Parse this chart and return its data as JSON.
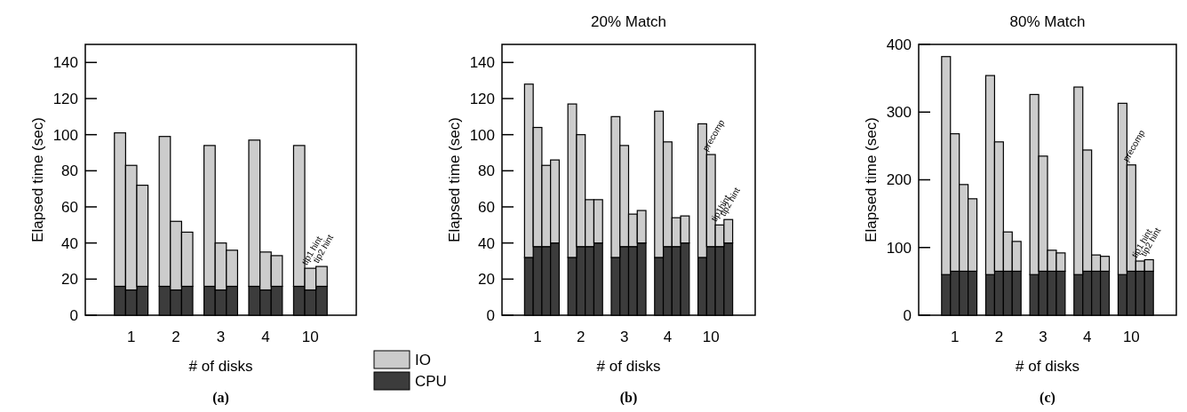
{
  "chart_data": [
    {
      "type": "bar",
      "stacked": true,
      "ylabel": "Elapsed time (sec)",
      "xlabel": "# of disks",
      "legend": "bottom right",
      "categories": [
        null,
        "1",
        null,
        null,
        null,
        "2",
        null,
        null,
        null,
        "3",
        null,
        null,
        null,
        "4",
        null,
        null,
        null,
        "10",
        null
      ],
      "ylim": [
        0,
        150
      ],
      "yticks": [
        0,
        20,
        40,
        60,
        80,
        100,
        120,
        140
      ],
      "series": [
        {
          "name": "CPU",
          "color": "#3c3c3c",
          "values": [
            16,
            14,
            16,
            null,
            16,
            14,
            16,
            null,
            16,
            14,
            16,
            null,
            16,
            14,
            16,
            null,
            16,
            14,
            16
          ]
        },
        {
          "name": "IO",
          "color": "#cccccc",
          "values": [
            85,
            69,
            56,
            null,
            83,
            38,
            30,
            null,
            78,
            26,
            20,
            null,
            81,
            21,
            17,
            null,
            78,
            12,
            11
          ]
        }
      ],
      "annotations": [
        {
          "text": "tip1 hint",
          "y": 26
        },
        {
          "text": "tip2 hint",
          "y": 27
        },
        "(a)"
      ]
    },
    {
      "type": "bar",
      "stacked": true,
      "title": "20% Match",
      "ylabel": "Elapsed time (sec)",
      "xlabel": "# of disks",
      "categories": [
        null,
        "1",
        null,
        null,
        null,
        null,
        "2",
        null,
        null,
        null,
        null,
        "3",
        null,
        null,
        null,
        null,
        "4",
        null,
        null,
        null,
        null,
        "10",
        null,
        null
      ],
      "ylim": [
        0,
        150
      ],
      "yticks": [
        0,
        20,
        40,
        60,
        80,
        100,
        120,
        140
      ],
      "series": [
        {
          "color": "#3c3c3c",
          "values": [
            32,
            38,
            38,
            40,
            null,
            32,
            38,
            38,
            40,
            null,
            32,
            38,
            38,
            40,
            null,
            32,
            38,
            38,
            40,
            null,
            32,
            38,
            38,
            40
          ]
        },
        {
          "color": "#cccccc",
          "values": [
            96,
            66,
            45,
            46,
            null,
            85,
            62,
            26,
            24,
            null,
            78,
            56,
            18,
            18,
            null,
            81,
            58,
            16,
            15,
            null,
            74,
            51,
            12,
            13
          ]
        }
      ],
      "annotations": [
        {
          "text": "precomp",
          "y": 89
        },
        {
          "text": "tip1hint",
          "y": 50
        },
        {
          "text": "tip2 hint",
          "y": 53
        },
        "(b)"
      ]
    },
    {
      "type": "bar",
      "stacked": true,
      "title": "80% Match",
      "ylabel": "Elapsed time (sec)",
      "xlabel": "# of disks",
      "categories": [
        null,
        "1",
        null,
        null,
        null,
        null,
        "2",
        null,
        null,
        null,
        null,
        "3",
        null,
        null,
        null,
        null,
        "4",
        null,
        null,
        null,
        null,
        "10",
        null,
        null
      ],
      "ylim": [
        0,
        400
      ],
      "yticks": [
        0,
        100,
        200,
        300,
        400
      ],
      "series": [
        {
          "color": "#3c3c3c",
          "values": [
            60,
            65,
            65,
            65,
            null,
            60,
            65,
            65,
            65,
            null,
            60,
            65,
            65,
            65,
            null,
            60,
            65,
            65,
            65,
            null,
            60,
            65,
            65,
            65
          ]
        },
        {
          "color": "#cccccc",
          "values": [
            322,
            203,
            128,
            107,
            null,
            294,
            191,
            58,
            44,
            null,
            266,
            170,
            31,
            27,
            null,
            277,
            179,
            24,
            22,
            null,
            253,
            157,
            15,
            17
          ]
        }
      ],
      "annotations": [
        {
          "text": "precomp",
          "y": 222
        },
        {
          "text": "tip1 hint",
          "y": 80
        },
        {
          "text": "tip2 hint",
          "y": 82
        },
        "(c)"
      ]
    }
  ]
}
